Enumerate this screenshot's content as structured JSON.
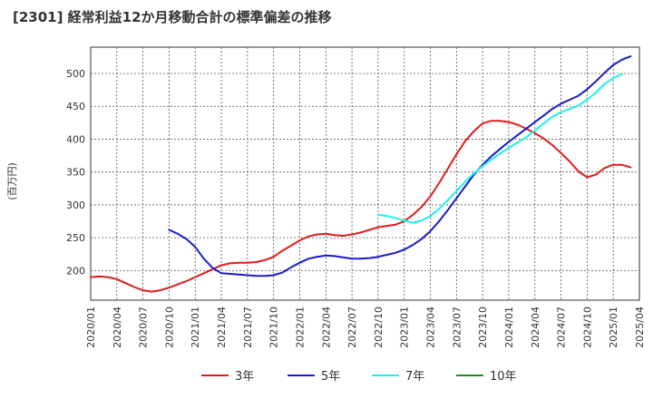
{
  "chart_data": {
    "type": "line",
    "title": "[2301]  経常利益12か月移動合計の標準偏差の推移",
    "xlabel": "",
    "ylabel": "(百万円)",
    "ylim": [
      155,
      540
    ],
    "yticks": [
      200,
      250,
      300,
      350,
      400,
      450,
      500
    ],
    "x_start": "2020-01",
    "x_end": "2025-04",
    "xtick_labels": [
      "2020/01",
      "2020/04",
      "2020/07",
      "2020/10",
      "2021/01",
      "2021/04",
      "2021/07",
      "2021/10",
      "2022/01",
      "2022/04",
      "2022/07",
      "2022/10",
      "2023/01",
      "2023/04",
      "2023/07",
      "2023/10",
      "2024/01",
      "2024/04",
      "2024/07",
      "2024/10",
      "2025/01",
      "2025/04"
    ],
    "grid": true,
    "legend_position": "bottom",
    "series": [
      {
        "name": "3年",
        "color": "#dd1c1c",
        "start": "2020-01",
        "values": [
          190,
          191,
          190,
          187,
          181,
          175,
          170,
          168,
          170,
          174,
          179,
          184,
          190,
          196,
          202,
          208,
          211,
          212,
          212,
          213,
          216,
          221,
          230,
          238,
          246,
          252,
          255,
          256,
          254,
          253,
          255,
          258,
          262,
          266,
          268,
          270,
          275,
          285,
          297,
          313,
          333,
          355,
          377,
          397,
          412,
          424,
          428,
          428,
          426,
          422,
          416,
          409,
          401,
          391,
          379,
          366,
          351,
          342,
          346,
          356,
          361,
          361,
          357
        ]
      },
      {
        "name": "5年",
        "color": "#1a1acc",
        "start": "2020-10",
        "values": [
          262,
          256,
          248,
          236,
          218,
          204,
          196,
          195,
          194,
          193,
          192,
          192,
          193,
          197,
          205,
          212,
          218,
          221,
          223,
          222,
          220,
          218,
          218,
          219,
          221,
          224,
          227,
          232,
          239,
          248,
          260,
          275,
          292,
          310,
          328,
          346,
          361,
          374,
          385,
          396,
          406,
          416,
          426,
          436,
          446,
          454,
          460,
          466,
          476,
          488,
          501,
          513,
          521,
          526
        ]
      },
      {
        "name": "7年",
        "color": "#22eeee",
        "start": "2022-10",
        "values": [
          285,
          283,
          280,
          276,
          273,
          276,
          283,
          294,
          307,
          321,
          335,
          348,
          359,
          369,
          378,
          387,
          395,
          403,
          413,
          424,
          434,
          441,
          446,
          451,
          460,
          471,
          484,
          493,
          499
        ]
      },
      {
        "name": "10年",
        "color": "#228b22",
        "start": "2025-01",
        "values": []
      }
    ]
  }
}
